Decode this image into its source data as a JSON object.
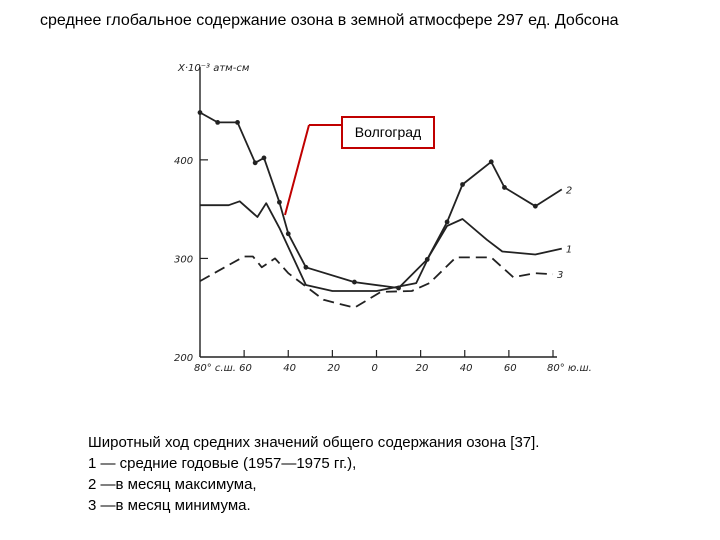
{
  "title": "среднее глобальное содержание озона в земной атмосфере 297 ед. Добсона",
  "callout": {
    "label": "Волгоград",
    "color": "#c00000"
  },
  "caption": [
    "Широтный ход средних значений общего содержания озона [37].",
    "1 — средние годовые (1957—1975 гг.),",
    "2 —в месяц максимума,",
    "3 —в месяц минимума."
  ],
  "chart_data": {
    "type": "line",
    "ylabel": "X·10⁻³ атм-см",
    "ylim": [
      200,
      480
    ],
    "xlim": [
      -80,
      80
    ],
    "yticks": [
      {
        "v": 200,
        "label": "200"
      },
      {
        "v": 300,
        "label": "300"
      },
      {
        "v": 400,
        "label": "400"
      }
    ],
    "xticks": [
      {
        "v": -80,
        "label": "80° с.ш."
      },
      {
        "v": -60,
        "label": "60"
      },
      {
        "v": -40,
        "label": "40"
      },
      {
        "v": -20,
        "label": "20"
      },
      {
        "v": 0,
        "label": "0"
      },
      {
        "v": 20,
        "label": "20"
      },
      {
        "v": 40,
        "label": "40"
      },
      {
        "v": 60,
        "label": "60"
      },
      {
        "v": 80,
        "label": "80° ю.ш."
      }
    ],
    "series": [
      {
        "name": "2",
        "style": "solid-markers",
        "points": [
          [
            -80,
            448
          ],
          [
            -72,
            438
          ],
          [
            -63,
            438
          ],
          [
            -55,
            397
          ],
          [
            -51,
            402
          ],
          [
            -44,
            357
          ],
          [
            -40,
            325
          ],
          [
            -32,
            291
          ],
          [
            -10,
            276
          ],
          [
            10,
            270
          ],
          [
            23,
            299
          ],
          [
            32,
            337
          ],
          [
            39,
            375
          ],
          [
            52,
            398
          ],
          [
            58,
            372
          ],
          [
            72,
            353
          ],
          [
            84,
            370
          ]
        ]
      },
      {
        "name": "1",
        "style": "solid",
        "points": [
          [
            -80,
            354
          ],
          [
            -67,
            354
          ],
          [
            -62,
            358
          ],
          [
            -54,
            342
          ],
          [
            -50,
            356
          ],
          [
            -44,
            331
          ],
          [
            -32,
            273
          ],
          [
            -20,
            267
          ],
          [
            0,
            267
          ],
          [
            18,
            275
          ],
          [
            24,
            303
          ],
          [
            32,
            333
          ],
          [
            39,
            340
          ],
          [
            50,
            319
          ],
          [
            57,
            307
          ],
          [
            72,
            304
          ],
          [
            84,
            310
          ]
        ]
      },
      {
        "name": "3",
        "style": "dashed",
        "points": [
          [
            -80,
            277
          ],
          [
            -72,
            287
          ],
          [
            -60,
            302
          ],
          [
            -56,
            302
          ],
          [
            -52,
            291
          ],
          [
            -46,
            300
          ],
          [
            -40,
            285
          ],
          [
            -24,
            258
          ],
          [
            -10,
            250
          ],
          [
            2,
            266
          ],
          [
            16,
            267
          ],
          [
            24,
            275
          ],
          [
            36,
            301
          ],
          [
            43,
            301
          ],
          [
            52,
            301
          ],
          [
            62,
            281
          ],
          [
            72,
            285
          ],
          [
            80,
            284
          ]
        ]
      }
    ]
  }
}
